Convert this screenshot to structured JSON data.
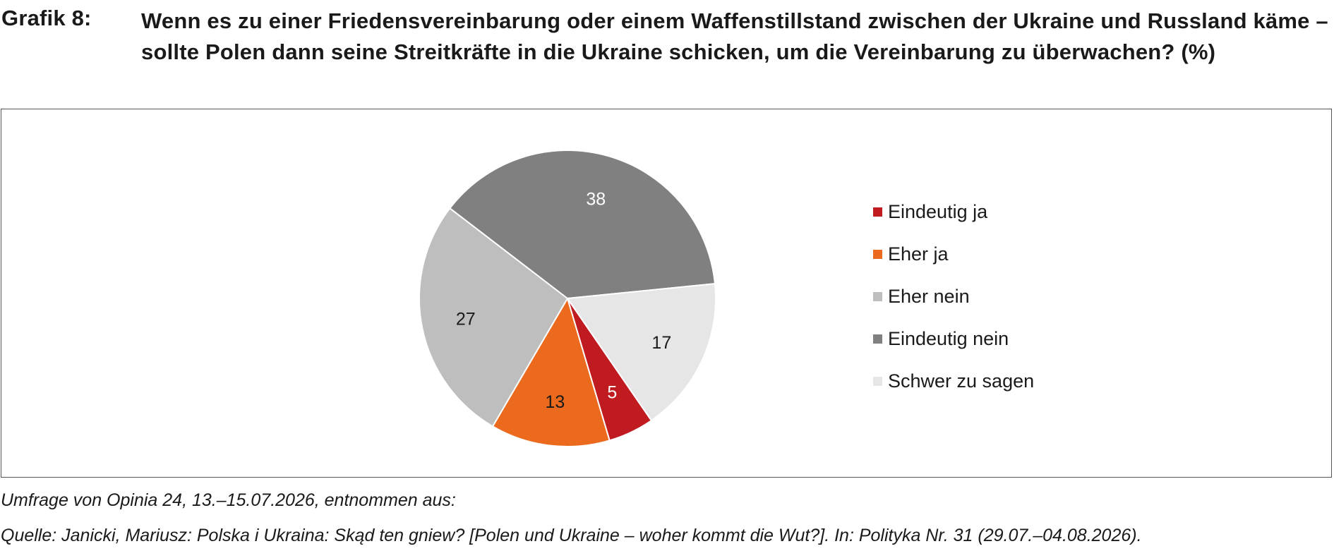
{
  "header": {
    "label": "Grafik 8:",
    "title": "Wenn es zu einer Friedensvereinbarung oder einem Waffenstillstand zwischen der Ukraine und Russland käme – sollte Polen dann seine Streitkräfte in die Ukraine schicken, um die Vereinbarung zu überwachen? (%)"
  },
  "chart_data": {
    "type": "pie",
    "title": "",
    "categories": [
      "Eindeutig ja",
      "Eher ja",
      "Eher nein",
      "Eindeutig nein",
      "Schwer zu sagen"
    ],
    "values": [
      5,
      13,
      27,
      38,
      17
    ],
    "data_labels": [
      "5",
      "13",
      "27",
      "38",
      "17"
    ],
    "colors": [
      "#c01b20",
      "#eb6a1e",
      "#bebebe",
      "#808080",
      "#e6e6e6"
    ],
    "label_colors": [
      "#ffffff",
      "#1a1a1a",
      "#1a1a1a",
      "#ffffff",
      "#1a1a1a"
    ],
    "start_direction": "bottom-left (5 o'clock of 8), proceeding clockwise",
    "legend_position": "right"
  },
  "footer": {
    "line1": "Umfrage von Opinia 24, 13.–15.07.2026, entnommen aus:",
    "line2": "Quelle: Janicki, Mariusz: Polska i Ukraina: Skąd ten gniew? [Polen und Ukraine – woher kommt die Wut?]. In: Polityka Nr. 31 (29.07.–04.08.2026)."
  }
}
